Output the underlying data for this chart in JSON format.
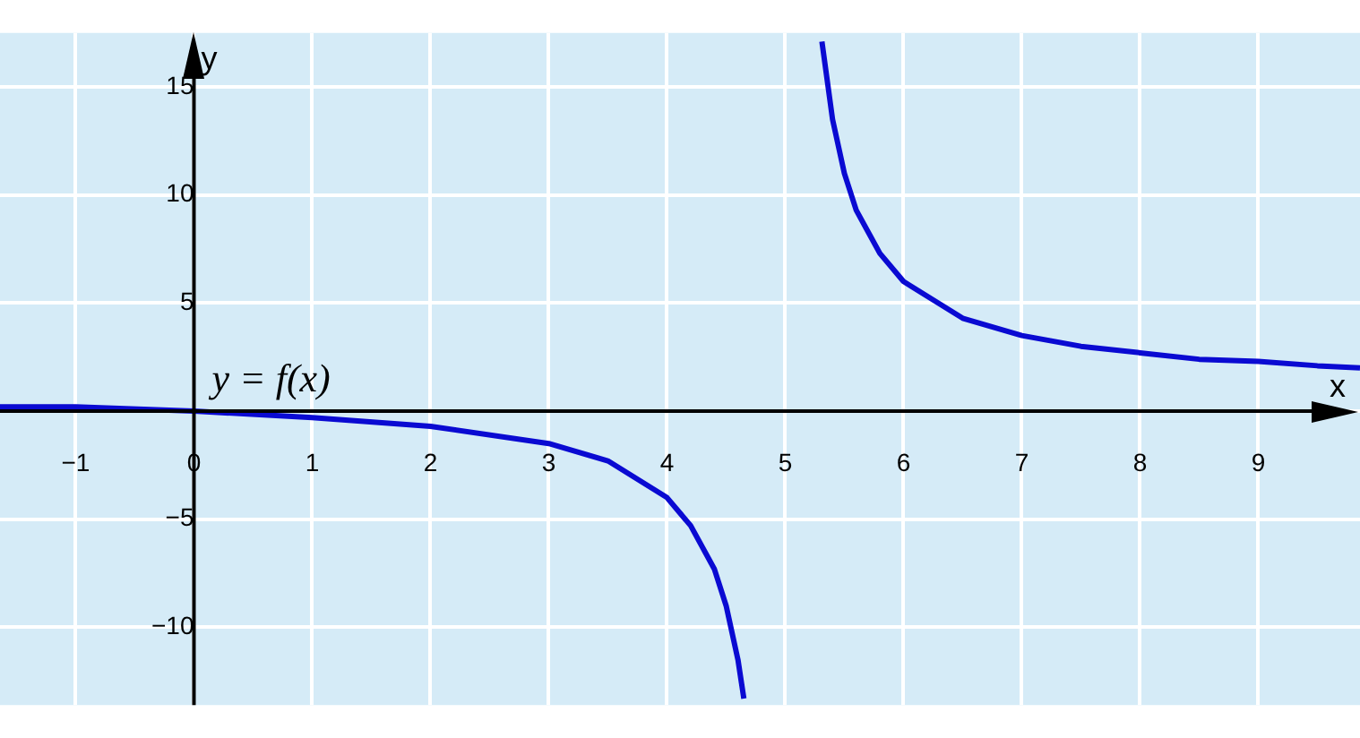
{
  "chart_data": {
    "type": "line",
    "xlabel": "x",
    "ylabel": "y",
    "x": [
      -1.64,
      -1,
      0,
      1,
      2,
      3,
      3.5,
      4,
      4.2,
      4.4,
      4.5,
      4.6,
      4.65,
      null,
      5.31,
      5.4,
      5.5,
      5.6,
      5.8,
      6,
      6.5,
      7,
      7.5,
      8,
      8.5,
      9,
      9.5,
      9.86
    ],
    "series": [
      {
        "color": "#0a0ad2",
        "values": [
          0.2,
          0.2,
          0,
          -0.3,
          -0.7,
          -1.5,
          -2.3,
          -4,
          -5.3,
          -7.3,
          -9,
          -11.5,
          -13.3,
          null,
          17.1,
          13.5,
          11,
          9.3,
          7.3,
          6,
          4.3,
          3.5,
          3,
          2.7,
          2.4,
          2.3,
          2.1,
          2.0
        ]
      }
    ],
    "xlim": [
      -1.64,
      9.86
    ],
    "ylim": [
      -13.6,
      17.5
    ],
    "xticks": [
      -1,
      0,
      1,
      2,
      3,
      4,
      5,
      6,
      7,
      8,
      9
    ],
    "yticks": [
      -10,
      -5,
      {
        "value": 0,
        "label": null
      },
      5,
      10,
      15
    ],
    "annotations": [
      "y = f(x)"
    ],
    "grid": true,
    "legend": false,
    "marker": "none",
    "line_style": "solid"
  }
}
